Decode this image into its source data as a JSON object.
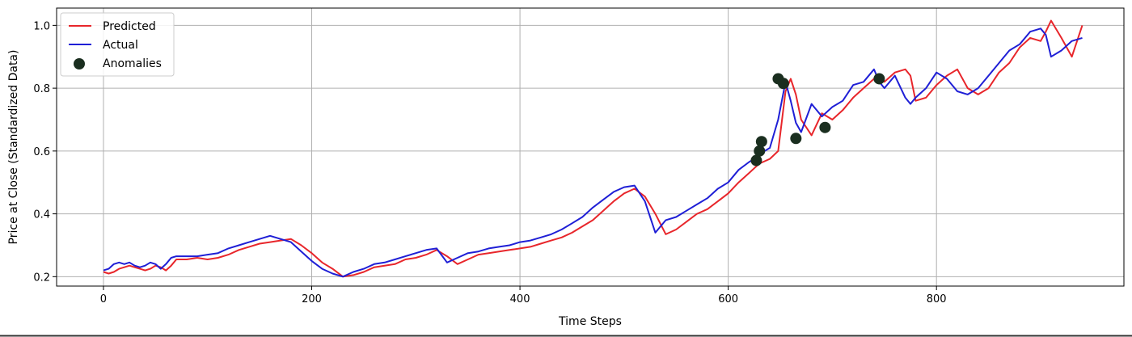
{
  "chart_data": {
    "type": "line",
    "title": "",
    "xlabel": "Time Steps",
    "ylabel": "Price at Close (Standardized Data)",
    "xlim": [
      -45,
      980
    ],
    "ylim": [
      0.17,
      1.055
    ],
    "xticks": [
      0,
      200,
      400,
      600,
      800
    ],
    "yticks": [
      0.2,
      0.4,
      0.6,
      0.8,
      1.0
    ],
    "xtick_labels": [
      "0",
      "200",
      "400",
      "600",
      "800"
    ],
    "ytick_labels": [
      "0.2",
      "0.4",
      "0.6",
      "0.8",
      "1.0"
    ],
    "grid": true,
    "legend_position": "top-left",
    "series": [
      {
        "name": "Predicted",
        "color": "#e8262b",
        "style": "line",
        "x": [
          0,
          5,
          10,
          15,
          20,
          25,
          30,
          35,
          40,
          45,
          50,
          55,
          60,
          65,
          70,
          80,
          90,
          100,
          110,
          120,
          130,
          140,
          150,
          160,
          170,
          180,
          190,
          200,
          210,
          220,
          230,
          240,
          250,
          260,
          270,
          280,
          290,
          300,
          310,
          320,
          330,
          340,
          350,
          360,
          370,
          380,
          390,
          400,
          410,
          420,
          430,
          440,
          450,
          460,
          470,
          480,
          490,
          500,
          510,
          520,
          530,
          540,
          550,
          560,
          570,
          580,
          590,
          600,
          610,
          620,
          625,
          630,
          640,
          648,
          655,
          660,
          665,
          670,
          680,
          690,
          700,
          710,
          720,
          730,
          740,
          745,
          750,
          760,
          770,
          775,
          780,
          790,
          800,
          810,
          820,
          830,
          840,
          850,
          860,
          870,
          880,
          890,
          900,
          905,
          910,
          920,
          930,
          940
        ],
        "y": [
          0.215,
          0.21,
          0.215,
          0.225,
          0.23,
          0.235,
          0.23,
          0.225,
          0.22,
          0.225,
          0.235,
          0.23,
          0.22,
          0.235,
          0.255,
          0.255,
          0.26,
          0.255,
          0.26,
          0.27,
          0.285,
          0.295,
          0.305,
          0.31,
          0.315,
          0.32,
          0.3,
          0.275,
          0.245,
          0.225,
          0.2,
          0.205,
          0.215,
          0.23,
          0.235,
          0.24,
          0.255,
          0.26,
          0.27,
          0.285,
          0.265,
          0.24,
          0.255,
          0.27,
          0.275,
          0.28,
          0.285,
          0.29,
          0.295,
          0.305,
          0.315,
          0.325,
          0.34,
          0.36,
          0.38,
          0.41,
          0.44,
          0.465,
          0.48,
          0.455,
          0.4,
          0.335,
          0.35,
          0.375,
          0.4,
          0.415,
          0.44,
          0.465,
          0.5,
          0.53,
          0.545,
          0.56,
          0.575,
          0.6,
          0.79,
          0.83,
          0.78,
          0.7,
          0.65,
          0.72,
          0.7,
          0.73,
          0.77,
          0.8,
          0.83,
          0.83,
          0.82,
          0.85,
          0.86,
          0.84,
          0.76,
          0.77,
          0.81,
          0.84,
          0.86,
          0.8,
          0.78,
          0.8,
          0.85,
          0.88,
          0.93,
          0.96,
          0.95,
          0.98,
          1.015,
          0.96,
          0.9,
          1.0
        ]
      },
      {
        "name": "Actual",
        "color": "#1f1fd6",
        "style": "line",
        "x": [
          0,
          5,
          10,
          15,
          20,
          25,
          30,
          35,
          40,
          45,
          50,
          55,
          60,
          65,
          70,
          80,
          90,
          100,
          110,
          120,
          130,
          140,
          150,
          160,
          170,
          180,
          190,
          200,
          210,
          220,
          230,
          240,
          250,
          260,
          270,
          280,
          290,
          300,
          310,
          320,
          330,
          340,
          350,
          360,
          370,
          380,
          390,
          400,
          410,
          420,
          430,
          440,
          450,
          460,
          470,
          480,
          490,
          500,
          510,
          520,
          530,
          540,
          550,
          560,
          570,
          580,
          590,
          600,
          610,
          620,
          625,
          630,
          640,
          648,
          655,
          660,
          665,
          670,
          680,
          690,
          700,
          710,
          720,
          730,
          740,
          745,
          750,
          760,
          770,
          775,
          780,
          790,
          800,
          810,
          820,
          830,
          840,
          850,
          860,
          870,
          880,
          890,
          900,
          905,
          910,
          920,
          930,
          940
        ],
        "y": [
          0.22,
          0.225,
          0.24,
          0.245,
          0.24,
          0.245,
          0.235,
          0.23,
          0.235,
          0.245,
          0.24,
          0.225,
          0.24,
          0.26,
          0.265,
          0.265,
          0.265,
          0.27,
          0.275,
          0.29,
          0.3,
          0.31,
          0.32,
          0.33,
          0.32,
          0.31,
          0.28,
          0.25,
          0.225,
          0.21,
          0.2,
          0.215,
          0.225,
          0.24,
          0.245,
          0.255,
          0.265,
          0.275,
          0.285,
          0.29,
          0.245,
          0.26,
          0.275,
          0.28,
          0.29,
          0.295,
          0.3,
          0.31,
          0.315,
          0.325,
          0.335,
          0.35,
          0.37,
          0.39,
          0.42,
          0.445,
          0.47,
          0.485,
          0.49,
          0.44,
          0.34,
          0.38,
          0.39,
          0.41,
          0.43,
          0.45,
          0.48,
          0.5,
          0.54,
          0.565,
          0.575,
          0.59,
          0.61,
          0.7,
          0.82,
          0.76,
          0.69,
          0.66,
          0.75,
          0.71,
          0.74,
          0.76,
          0.81,
          0.82,
          0.86,
          0.82,
          0.8,
          0.84,
          0.77,
          0.75,
          0.77,
          0.8,
          0.85,
          0.83,
          0.79,
          0.78,
          0.8,
          0.84,
          0.88,
          0.92,
          0.94,
          0.98,
          0.99,
          0.97,
          0.9,
          0.92,
          0.95,
          0.96
        ]
      },
      {
        "name": "Anomalies",
        "color": "#1a2e1f",
        "style": "scatter",
        "x": [
          627,
          630,
          632,
          648,
          653,
          665,
          693,
          745
        ],
        "y": [
          0.57,
          0.6,
          0.63,
          0.83,
          0.815,
          0.64,
          0.675,
          0.83
        ]
      }
    ]
  }
}
